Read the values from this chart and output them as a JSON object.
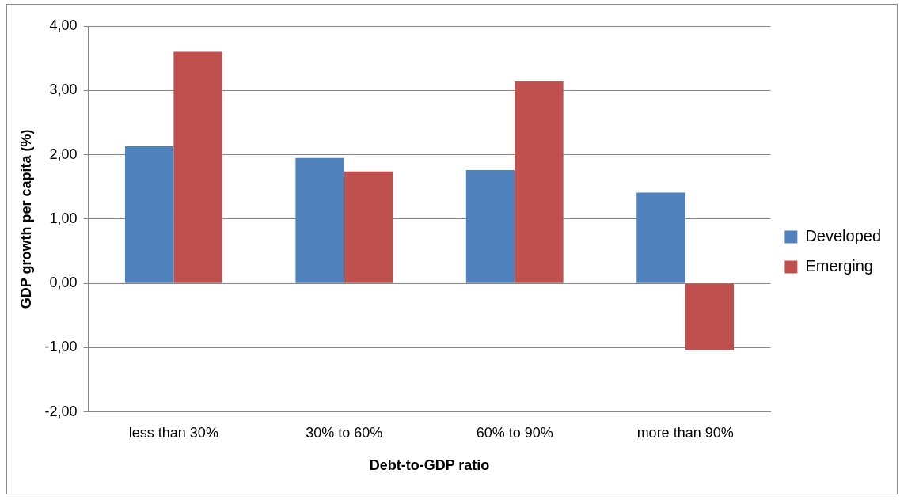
{
  "chart_data": {
    "type": "bar",
    "xlabel": "Debt-to-GDP ratio",
    "ylabel": "GDP growth per capita (%)",
    "categories": [
      "less than 30%",
      "30% to 60%",
      "60% to 90%",
      "more than 90%"
    ],
    "series": [
      {
        "name": "Developed",
        "color": "#4f81bd",
        "values": [
          2.13,
          1.95,
          1.76,
          1.41
        ]
      },
      {
        "name": "Emerging",
        "color": "#c0504d",
        "values": [
          3.6,
          1.74,
          3.14,
          -1.04
        ]
      }
    ],
    "ylim": [
      -2,
      4
    ],
    "yticks": [
      {
        "value": -2,
        "label": "-2,00"
      },
      {
        "value": -1,
        "label": "-1,00"
      },
      {
        "value": 0,
        "label": "0,00"
      },
      {
        "value": 1,
        "label": "1,00"
      },
      {
        "value": 2,
        "label": "2,00"
      },
      {
        "value": 3,
        "label": "3,00"
      },
      {
        "value": 4,
        "label": "4,00"
      }
    ],
    "grid": "y",
    "legend": "right"
  }
}
